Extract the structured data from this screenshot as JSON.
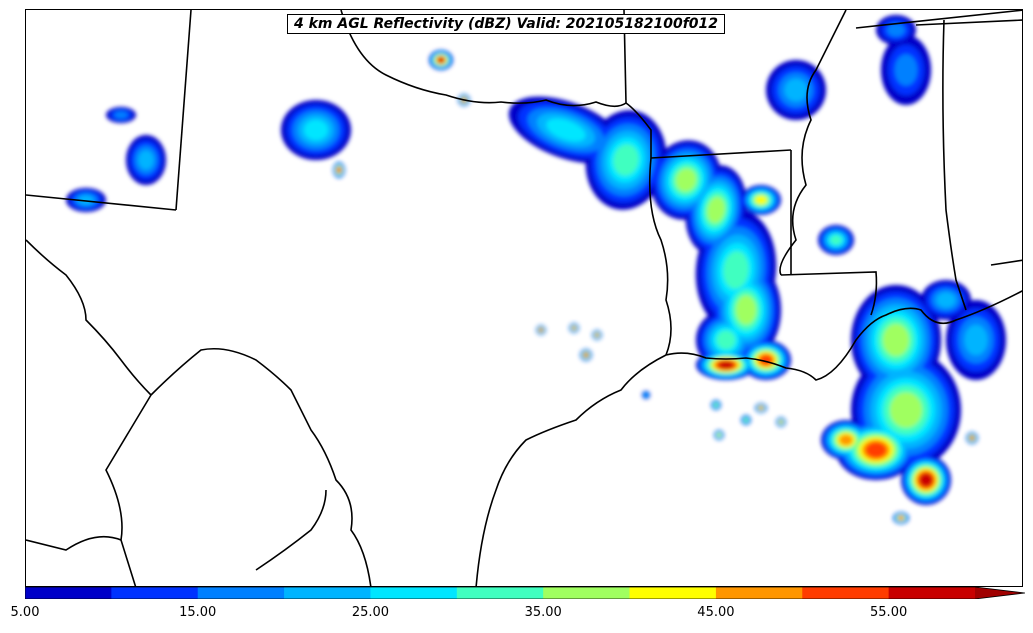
{
  "title": "4 km AGL Reflectivity (dBZ) Valid: 202105182100f012",
  "colorbar": {
    "boundaries": [
      5,
      10,
      15,
      20,
      25,
      30,
      35,
      40,
      45,
      50,
      55
    ],
    "colors": [
      "#0000c8",
      "#0032ff",
      "#0080ff",
      "#00b4ff",
      "#00e6ff",
      "#40ffc0",
      "#a0ff60",
      "#ffff00",
      "#ff9600",
      "#ff3c00",
      "#c80000"
    ],
    "extend_color": "#a00000",
    "tick_labels": [
      "5.00",
      "15.00",
      "25.00",
      "35.00",
      "45.00",
      "55.00"
    ]
  },
  "map_palette": {
    "background": "#ffffff",
    "boundary": "#000000",
    "level_5": "#0000c8",
    "level_10": "#0032ff",
    "level_15": "#0080ff",
    "level_20": "#00b4ff",
    "level_25": "#00e6ff",
    "level_30": "#40ffc0",
    "level_35": "#a0ff60",
    "level_40": "#ffff00",
    "level_45": "#ff9600",
    "level_50": "#ff3c00",
    "level_55": "#c80000"
  }
}
